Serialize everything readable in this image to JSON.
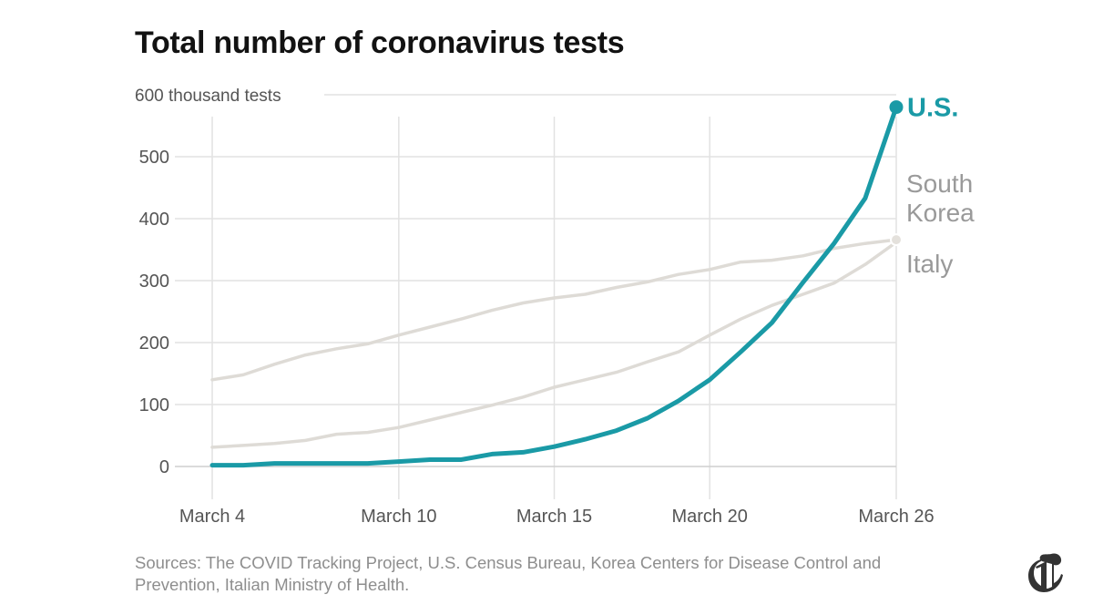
{
  "title": "Total number of coronavirus tests",
  "source": "Sources: The COVID Tracking Project, U.S. Census Bureau, Korea Centers for Disease Control and Prevention, Italian Ministry of Health.",
  "logo": {
    "icon": "nyt-t-logo-icon"
  },
  "colors": {
    "us": "#1a9aa6",
    "south_korea": "#dedbd6",
    "italy": "#dedbd6",
    "label_grey": "#9a9a9a",
    "grid": "#e2e2e2",
    "axis_text": "#555555"
  },
  "chart_data": {
    "type": "line",
    "title": "Total number of coronavirus tests",
    "ylabel": "thousand tests",
    "xlabel": "",
    "ylim": [
      -50,
      615
    ],
    "xlim": [
      0,
      22
    ],
    "yticks": [
      {
        "value": 600,
        "label": "600 thousand tests"
      },
      {
        "value": 500,
        "label": "500"
      },
      {
        "value": 400,
        "label": "400"
      },
      {
        "value": 300,
        "label": "300"
      },
      {
        "value": 200,
        "label": "200"
      },
      {
        "value": 100,
        "label": "100"
      },
      {
        "value": 0,
        "label": "0"
      }
    ],
    "xticks": [
      {
        "day": 0,
        "label": "March 4"
      },
      {
        "day": 6,
        "label": "March 10"
      },
      {
        "day": 11,
        "label": "March 15"
      },
      {
        "day": 16,
        "label": "March 20"
      },
      {
        "day": 22,
        "label": "March 26"
      }
    ],
    "x_days": [
      0,
      1,
      2,
      3,
      4,
      5,
      6,
      7,
      8,
      9,
      10,
      11,
      12,
      13,
      14,
      15,
      16,
      17,
      18,
      19,
      20,
      21,
      22
    ],
    "series": [
      {
        "key": "south_korea",
        "name": "South Korea",
        "label_lines": [
          "South",
          "Korea"
        ],
        "values": [
          140,
          148,
          165,
          180,
          190,
          198,
          212,
          225,
          238,
          252,
          264,
          272,
          278,
          289,
          298,
          310,
          318,
          330,
          333,
          340,
          352,
          360,
          366
        ]
      },
      {
        "key": "italy",
        "name": "Italy",
        "label_lines": [
          "Italy"
        ],
        "values": [
          31,
          34,
          37,
          42,
          52,
          55,
          63,
          75,
          87,
          99,
          112,
          128,
          140,
          152,
          169,
          185,
          212,
          238,
          260,
          278,
          296,
          326,
          362
        ]
      },
      {
        "key": "us",
        "name": "U.S.",
        "label_lines": [
          "U.S."
        ],
        "values": [
          2,
          2,
          5,
          5,
          5,
          5,
          8,
          11,
          11,
          20,
          23,
          32,
          44,
          58,
          78,
          106,
          140,
          185,
          232,
          297,
          360,
          433,
          580
        ]
      }
    ]
  }
}
